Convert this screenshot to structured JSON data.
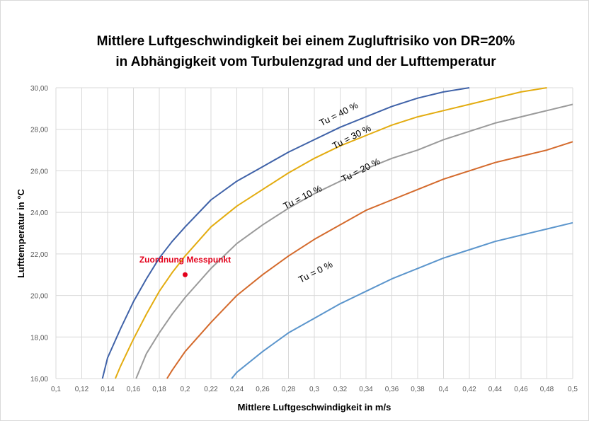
{
  "chart_data": {
    "type": "line",
    "title_lines": [
      "Mittlere Luftgeschwindigkeit bei einem Zugluftrisiko von DR=20%",
      "in Abhängigkeit vom Turbulenzgrad und der Lufttemperatur"
    ],
    "xlabel": "Mittlere Luftgeschwindigkeit in m/s",
    "ylabel": "Lufttemperatur in °C",
    "xlim": [
      0.1,
      0.5
    ],
    "ylim": [
      16,
      30
    ],
    "grid": true,
    "x_ticks": [
      "0,1",
      "0,12",
      "0,14",
      "0,16",
      "0,18",
      "0,2",
      "0,22",
      "0,24",
      "0,26",
      "0,28",
      "0,3",
      "0,32",
      "0,34",
      "0,36",
      "0,38",
      "0,4",
      "0,42",
      "0,44",
      "0,46",
      "0,48",
      "0,5"
    ],
    "y_ticks": [
      "16,00",
      "18,00",
      "20,00",
      "22,00",
      "24,00",
      "26,00",
      "28,00",
      "30,00"
    ],
    "series": [
      {
        "name": "Tu = 40 %",
        "color": "#3f62a8",
        "label_at": [
          0.32,
          28.6
        ],
        "points": [
          [
            0.136,
            16
          ],
          [
            0.14,
            17
          ],
          [
            0.15,
            18.4
          ],
          [
            0.16,
            19.7
          ],
          [
            0.17,
            20.8
          ],
          [
            0.18,
            21.8
          ],
          [
            0.19,
            22.6
          ],
          [
            0.2,
            23.3
          ],
          [
            0.22,
            24.6
          ],
          [
            0.24,
            25.5
          ],
          [
            0.26,
            26.2
          ],
          [
            0.28,
            26.9
          ],
          [
            0.3,
            27.5
          ],
          [
            0.32,
            28.1
          ],
          [
            0.34,
            28.6
          ],
          [
            0.36,
            29.1
          ],
          [
            0.38,
            29.5
          ],
          [
            0.4,
            29.8
          ],
          [
            0.42,
            30.0
          ]
        ]
      },
      {
        "name": "Tu = 30 %",
        "color": "#e3ac10",
        "label_at": [
          0.33,
          27.5
        ],
        "points": [
          [
            0.146,
            16
          ],
          [
            0.15,
            16.6
          ],
          [
            0.16,
            17.9
          ],
          [
            0.17,
            19.1
          ],
          [
            0.18,
            20.2
          ],
          [
            0.19,
            21.1
          ],
          [
            0.2,
            21.9
          ],
          [
            0.22,
            23.3
          ],
          [
            0.24,
            24.3
          ],
          [
            0.26,
            25.1
          ],
          [
            0.28,
            25.9
          ],
          [
            0.3,
            26.6
          ],
          [
            0.32,
            27.2
          ],
          [
            0.34,
            27.7
          ],
          [
            0.36,
            28.2
          ],
          [
            0.38,
            28.6
          ],
          [
            0.4,
            28.9
          ],
          [
            0.42,
            29.2
          ],
          [
            0.44,
            29.5
          ],
          [
            0.46,
            29.8
          ],
          [
            0.48,
            30.0
          ]
        ]
      },
      {
        "name": "Tu = 20 %",
        "color": "#9a9a9a",
        "label_at": [
          0.337,
          25.9
        ],
        "points": [
          [
            0.162,
            16
          ],
          [
            0.17,
            17.2
          ],
          [
            0.18,
            18.2
          ],
          [
            0.19,
            19.1
          ],
          [
            0.2,
            19.9
          ],
          [
            0.22,
            21.3
          ],
          [
            0.24,
            22.5
          ],
          [
            0.26,
            23.4
          ],
          [
            0.28,
            24.2
          ],
          [
            0.3,
            24.9
          ],
          [
            0.32,
            25.5
          ],
          [
            0.34,
            26.1
          ],
          [
            0.36,
            26.6
          ],
          [
            0.38,
            27.0
          ],
          [
            0.4,
            27.5
          ],
          [
            0.42,
            27.9
          ],
          [
            0.44,
            28.3
          ],
          [
            0.46,
            28.6
          ],
          [
            0.48,
            28.9
          ],
          [
            0.5,
            29.2
          ]
        ]
      },
      {
        "name": "Tu = 10 %",
        "color": "#d46a2c",
        "label_at": [
          0.292,
          24.6
        ],
        "points": [
          [
            0.186,
            16
          ],
          [
            0.19,
            16.4
          ],
          [
            0.2,
            17.3
          ],
          [
            0.22,
            18.7
          ],
          [
            0.24,
            20.0
          ],
          [
            0.26,
            21.0
          ],
          [
            0.28,
            21.9
          ],
          [
            0.3,
            22.7
          ],
          [
            0.32,
            23.4
          ],
          [
            0.34,
            24.1
          ],
          [
            0.36,
            24.6
          ],
          [
            0.38,
            25.1
          ],
          [
            0.4,
            25.6
          ],
          [
            0.42,
            26.0
          ],
          [
            0.44,
            26.4
          ],
          [
            0.46,
            26.7
          ],
          [
            0.48,
            27.0
          ],
          [
            0.5,
            27.4
          ]
        ]
      },
      {
        "name": "Tu = 0 %",
        "color": "#5b95cc",
        "label_at": [
          0.302,
          21.0
        ],
        "points": [
          [
            0.236,
            16
          ],
          [
            0.24,
            16.3
          ],
          [
            0.26,
            17.3
          ],
          [
            0.28,
            18.2
          ],
          [
            0.3,
            18.9
          ],
          [
            0.32,
            19.6
          ],
          [
            0.34,
            20.2
          ],
          [
            0.36,
            20.8
          ],
          [
            0.38,
            21.3
          ],
          [
            0.4,
            21.8
          ],
          [
            0.42,
            22.2
          ],
          [
            0.44,
            22.6
          ],
          [
            0.46,
            22.9
          ],
          [
            0.48,
            23.2
          ],
          [
            0.5,
            23.5
          ]
        ]
      }
    ],
    "annotations": [
      {
        "text": "Zuordnung Messpunkt",
        "point": [
          0.2,
          21.0
        ],
        "color": "#e3001b"
      }
    ]
  }
}
